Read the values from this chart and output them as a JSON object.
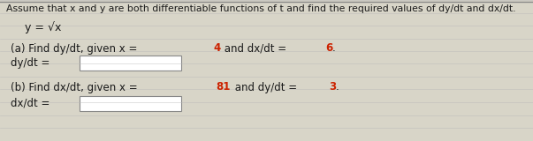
{
  "bg_color": "#d8d5c8",
  "line_color": "#b8b8b8",
  "text_color": "#1a1a1a",
  "highlight_color": "#cc2200",
  "title": "Assume that x and y are both differentiable functions of t and find the required values of dy/dt and dx/dt.",
  "font_size_title": 7.8,
  "font_size_body": 8.5,
  "font_size_eq": 9.0,
  "fig_width": 6.03,
  "fig_height": 1.6
}
